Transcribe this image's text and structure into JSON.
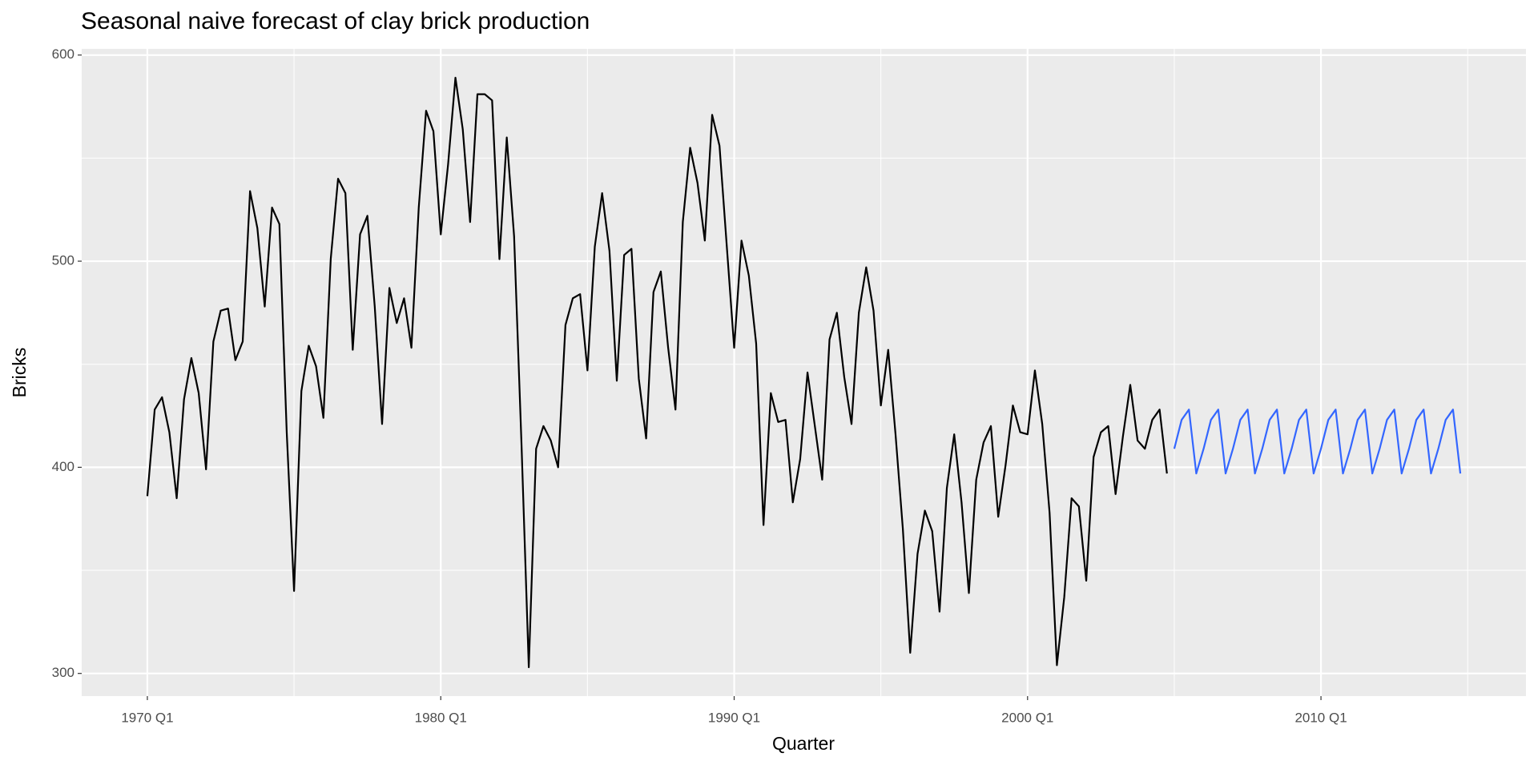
{
  "chart_data": {
    "type": "line",
    "title": "Seasonal naive forecast of clay brick production",
    "x_label": "Quarter",
    "y_label": "Bricks",
    "x": [
      "1970 Q1",
      "1970 Q2",
      "1970 Q3",
      "1970 Q4",
      "1971 Q1",
      "1971 Q2",
      "1971 Q3",
      "1971 Q4",
      "1972 Q1",
      "1972 Q2",
      "1972 Q3",
      "1972 Q4",
      "1973 Q1",
      "1973 Q2",
      "1973 Q3",
      "1973 Q4",
      "1974 Q1",
      "1974 Q2",
      "1974 Q3",
      "1974 Q4",
      "1975 Q1",
      "1975 Q2",
      "1975 Q3",
      "1975 Q4",
      "1976 Q1",
      "1976 Q2",
      "1976 Q3",
      "1976 Q4",
      "1977 Q1",
      "1977 Q2",
      "1977 Q3",
      "1977 Q4",
      "1978 Q1",
      "1978 Q2",
      "1978 Q3",
      "1978 Q4",
      "1979 Q1",
      "1979 Q2",
      "1979 Q3",
      "1979 Q4",
      "1980 Q1",
      "1980 Q2",
      "1980 Q3",
      "1980 Q4",
      "1981 Q1",
      "1981 Q2",
      "1981 Q3",
      "1981 Q4",
      "1982 Q1",
      "1982 Q2",
      "1982 Q3",
      "1982 Q4",
      "1983 Q1",
      "1983 Q2",
      "1983 Q3",
      "1983 Q4",
      "1984 Q1",
      "1984 Q2",
      "1984 Q3",
      "1984 Q4",
      "1985 Q1",
      "1985 Q2",
      "1985 Q3",
      "1985 Q4",
      "1986 Q1",
      "1986 Q2",
      "1986 Q3",
      "1986 Q4",
      "1987 Q1",
      "1987 Q2",
      "1987 Q3",
      "1987 Q4",
      "1988 Q1",
      "1988 Q2",
      "1988 Q3",
      "1988 Q4",
      "1989 Q1",
      "1989 Q2",
      "1989 Q3",
      "1989 Q4",
      "1990 Q1",
      "1990 Q2",
      "1990 Q3",
      "1990 Q4",
      "1991 Q1",
      "1991 Q2",
      "1991 Q3",
      "1991 Q4",
      "1992 Q1",
      "1992 Q2",
      "1992 Q3",
      "1992 Q4",
      "1993 Q1",
      "1993 Q2",
      "1993 Q3",
      "1993 Q4",
      "1994 Q1",
      "1994 Q2",
      "1994 Q3",
      "1994 Q4",
      "1995 Q1",
      "1995 Q2",
      "1995 Q3",
      "1995 Q4",
      "1996 Q1",
      "1996 Q2",
      "1996 Q3",
      "1996 Q4",
      "1997 Q1",
      "1997 Q2",
      "1997 Q3",
      "1997 Q4",
      "1998 Q1",
      "1998 Q2",
      "1998 Q3",
      "1998 Q4",
      "1999 Q1",
      "1999 Q2",
      "1999 Q3",
      "1999 Q4",
      "2000 Q1",
      "2000 Q2",
      "2000 Q3",
      "2000 Q4",
      "2001 Q1",
      "2001 Q2",
      "2001 Q3",
      "2001 Q4",
      "2002 Q1",
      "2002 Q2",
      "2002 Q3",
      "2002 Q4",
      "2003 Q1",
      "2003 Q2",
      "2003 Q3",
      "2003 Q4",
      "2004 Q1",
      "2004 Q2",
      "2004 Q3",
      "2004 Q4",
      "2005 Q1",
      "2005 Q2",
      "2005 Q3",
      "2005 Q4",
      "2006 Q1",
      "2006 Q2",
      "2006 Q3",
      "2006 Q4",
      "2007 Q1",
      "2007 Q2",
      "2007 Q3",
      "2007 Q4",
      "2008 Q1",
      "2008 Q2",
      "2008 Q3",
      "2008 Q4",
      "2009 Q1",
      "2009 Q2",
      "2009 Q3",
      "2009 Q4",
      "2010 Q1",
      "2010 Q2",
      "2010 Q3",
      "2010 Q4",
      "2011 Q1",
      "2011 Q2",
      "2011 Q3",
      "2011 Q4",
      "2012 Q1",
      "2012 Q2",
      "2012 Q3",
      "2012 Q4",
      "2013 Q1",
      "2013 Q2",
      "2013 Q3",
      "2013 Q4",
      "2014 Q1",
      "2014 Q2",
      "2014 Q3",
      "2014 Q4"
    ],
    "series": [
      {
        "color": "#000000",
        "values": [
          386,
          428,
          434,
          417,
          385,
          433,
          453,
          436,
          399,
          461,
          476,
          477,
          452,
          461,
          534,
          516,
          478,
          526,
          518,
          417,
          340,
          437,
          459,
          449,
          424,
          501,
          540,
          533,
          457,
          513,
          522,
          478,
          421,
          487,
          470,
          482,
          458,
          526,
          573,
          563,
          513,
          547,
          589,
          564,
          519,
          581,
          581,
          578,
          501,
          560,
          512,
          412,
          303,
          409,
          420,
          413,
          400,
          469,
          482,
          484,
          447,
          507,
          533,
          505,
          442,
          503,
          506,
          443,
          414,
          485,
          495,
          458,
          428,
          519,
          555,
          538,
          510,
          571,
          556,
          507,
          458,
          510,
          493,
          460,
          372,
          436,
          422,
          423,
          383,
          404,
          446,
          420,
          394,
          462,
          475,
          444,
          421,
          475,
          497,
          476,
          430,
          457,
          416,
          370,
          310,
          358,
          379,
          369,
          330,
          390,
          416,
          383,
          339,
          394,
          412,
          420,
          376,
          401,
          430,
          417,
          416,
          447,
          421,
          378,
          304,
          337,
          385,
          381,
          345,
          405,
          417,
          420,
          387,
          415,
          440,
          413,
          409,
          423,
          428,
          397,
          null,
          null,
          null,
          null,
          null,
          null,
          null,
          null,
          null,
          null,
          null,
          null,
          null,
          null,
          null,
          null,
          null,
          null,
          null,
          null,
          null,
          null,
          null,
          null,
          null,
          null,
          null,
          null,
          null,
          null,
          null,
          null,
          null,
          null,
          null,
          null,
          null,
          null,
          null,
          null
        ]
      },
      {
        "color": "#3366FF",
        "values": [
          null,
          null,
          null,
          null,
          null,
          null,
          null,
          null,
          null,
          null,
          null,
          null,
          null,
          null,
          null,
          null,
          null,
          null,
          null,
          null,
          null,
          null,
          null,
          null,
          null,
          null,
          null,
          null,
          null,
          null,
          null,
          null,
          null,
          null,
          null,
          null,
          null,
          null,
          null,
          null,
          null,
          null,
          null,
          null,
          null,
          null,
          null,
          null,
          null,
          null,
          null,
          null,
          null,
          null,
          null,
          null,
          null,
          null,
          null,
          null,
          null,
          null,
          null,
          null,
          null,
          null,
          null,
          null,
          null,
          null,
          null,
          null,
          null,
          null,
          null,
          null,
          null,
          null,
          null,
          null,
          null,
          null,
          null,
          null,
          null,
          null,
          null,
          null,
          null,
          null,
          null,
          null,
          null,
          null,
          null,
          null,
          null,
          null,
          null,
          null,
          null,
          null,
          null,
          null,
          null,
          null,
          null,
          null,
          null,
          null,
          null,
          null,
          null,
          null,
          null,
          null,
          null,
          null,
          null,
          null,
          null,
          null,
          null,
          null,
          null,
          null,
          null,
          null,
          null,
          null,
          null,
          null,
          null,
          null,
          null,
          null,
          null,
          null,
          null,
          null,
          409,
          423,
          428,
          397,
          409,
          423,
          428,
          397,
          409,
          423,
          428,
          397,
          409,
          423,
          428,
          397,
          409,
          423,
          428,
          397,
          409,
          423,
          428,
          397,
          409,
          423,
          428,
          397,
          409,
          423,
          428,
          397,
          409,
          423,
          428,
          397,
          409,
          423,
          428,
          397
        ]
      }
    ],
    "xticks": [
      "1970 Q1",
      "1980 Q1",
      "1990 Q1",
      "2000 Q1",
      "2010 Q1"
    ],
    "ylim": [
      289,
      603
    ],
    "yticks": [
      300,
      400,
      500,
      600
    ],
    "grid": true
  }
}
